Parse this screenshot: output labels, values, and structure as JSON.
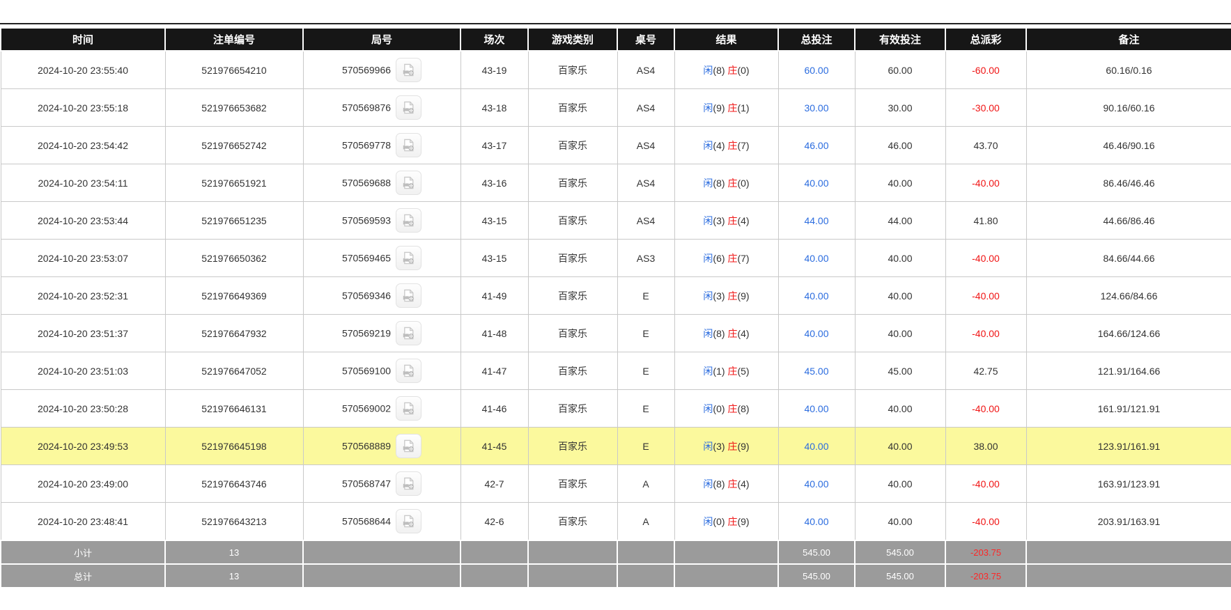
{
  "colors": {
    "header_bg": "#161616",
    "player_blue": "#2b6cdf",
    "banker_red": "#f01414",
    "bet_amount_blue": "#2b6cdf",
    "negative_red": "#f01414",
    "highlight_yellow": "#fbf99d",
    "summary_bg": "#9b9b9b"
  },
  "icons": {
    "round_cell_button": "video-replay-icon"
  },
  "table": {
    "columns": [
      {
        "key": "time",
        "label": "时间"
      },
      {
        "key": "bet_id",
        "label": "注单编号"
      },
      {
        "key": "round_id",
        "label": "局号"
      },
      {
        "key": "session",
        "label": "场次"
      },
      {
        "key": "game_type",
        "label": "游戏类别"
      },
      {
        "key": "table_no",
        "label": "桌号"
      },
      {
        "key": "result",
        "label": "结果"
      },
      {
        "key": "total_bet",
        "label": "总投注"
      },
      {
        "key": "valid_bet",
        "label": "有效投注"
      },
      {
        "key": "payout",
        "label": "总派彩"
      },
      {
        "key": "remark",
        "label": "备注"
      }
    ],
    "rows": [
      {
        "time": "2024-10-20 23:55:40",
        "bet_id": "521976654210",
        "round_id": "570569966",
        "session": "43-19",
        "game_type": "百家乐",
        "table_no": "AS4",
        "result": {
          "p_label": "闲",
          "p_score": "(8)",
          "b_label": "庄",
          "b_score": "(0)"
        },
        "total_bet": "60.00",
        "valid_bet": "60.00",
        "payout": "-60.00",
        "remark": "60.16/0.16",
        "highlighted": false
      },
      {
        "time": "2024-10-20 23:55:18",
        "bet_id": "521976653682",
        "round_id": "570569876",
        "session": "43-18",
        "game_type": "百家乐",
        "table_no": "AS4",
        "result": {
          "p_label": "闲",
          "p_score": "(9)",
          "b_label": "庄",
          "b_score": "(1)"
        },
        "total_bet": "30.00",
        "valid_bet": "30.00",
        "payout": "-30.00",
        "remark": "90.16/60.16",
        "highlighted": false
      },
      {
        "time": "2024-10-20 23:54:42",
        "bet_id": "521976652742",
        "round_id": "570569778",
        "session": "43-17",
        "game_type": "百家乐",
        "table_no": "AS4",
        "result": {
          "p_label": "闲",
          "p_score": "(4)",
          "b_label": "庄",
          "b_score": "(7)"
        },
        "total_bet": "46.00",
        "valid_bet": "46.00",
        "payout": "43.70",
        "remark": "46.46/90.16",
        "highlighted": false
      },
      {
        "time": "2024-10-20 23:54:11",
        "bet_id": "521976651921",
        "round_id": "570569688",
        "session": "43-16",
        "game_type": "百家乐",
        "table_no": "AS4",
        "result": {
          "p_label": "闲",
          "p_score": "(8)",
          "b_label": "庄",
          "b_score": "(0)"
        },
        "total_bet": "40.00",
        "valid_bet": "40.00",
        "payout": "-40.00",
        "remark": "86.46/46.46",
        "highlighted": false
      },
      {
        "time": "2024-10-20 23:53:44",
        "bet_id": "521976651235",
        "round_id": "570569593",
        "session": "43-15",
        "game_type": "百家乐",
        "table_no": "AS4",
        "result": {
          "p_label": "闲",
          "p_score": "(3)",
          "b_label": "庄",
          "b_score": "(4)"
        },
        "total_bet": "44.00",
        "valid_bet": "44.00",
        "payout": "41.80",
        "remark": "44.66/86.46",
        "highlighted": false
      },
      {
        "time": "2024-10-20 23:53:07",
        "bet_id": "521976650362",
        "round_id": "570569465",
        "session": "43-15",
        "game_type": "百家乐",
        "table_no": "AS3",
        "result": {
          "p_label": "闲",
          "p_score": "(6)",
          "b_label": "庄",
          "b_score": "(7)"
        },
        "total_bet": "40.00",
        "valid_bet": "40.00",
        "payout": "-40.00",
        "remark": "84.66/44.66",
        "highlighted": false
      },
      {
        "time": "2024-10-20 23:52:31",
        "bet_id": "521976649369",
        "round_id": "570569346",
        "session": "41-49",
        "game_type": "百家乐",
        "table_no": "E",
        "result": {
          "p_label": "闲",
          "p_score": "(3)",
          "b_label": "庄",
          "b_score": "(9)"
        },
        "total_bet": "40.00",
        "valid_bet": "40.00",
        "payout": "-40.00",
        "remark": "124.66/84.66",
        "highlighted": false
      },
      {
        "time": "2024-10-20 23:51:37",
        "bet_id": "521976647932",
        "round_id": "570569219",
        "session": "41-48",
        "game_type": "百家乐",
        "table_no": "E",
        "result": {
          "p_label": "闲",
          "p_score": "(8)",
          "b_label": "庄",
          "b_score": "(4)"
        },
        "total_bet": "40.00",
        "valid_bet": "40.00",
        "payout": "-40.00",
        "remark": "164.66/124.66",
        "highlighted": false
      },
      {
        "time": "2024-10-20 23:51:03",
        "bet_id": "521976647052",
        "round_id": "570569100",
        "session": "41-47",
        "game_type": "百家乐",
        "table_no": "E",
        "result": {
          "p_label": "闲",
          "p_score": "(1)",
          "b_label": "庄",
          "b_score": "(5)"
        },
        "total_bet": "45.00",
        "valid_bet": "45.00",
        "payout": "42.75",
        "remark": "121.91/164.66",
        "highlighted": false
      },
      {
        "time": "2024-10-20 23:50:28",
        "bet_id": "521976646131",
        "round_id": "570569002",
        "session": "41-46",
        "game_type": "百家乐",
        "table_no": "E",
        "result": {
          "p_label": "闲",
          "p_score": "(0)",
          "b_label": "庄",
          "b_score": "(8)"
        },
        "total_bet": "40.00",
        "valid_bet": "40.00",
        "payout": "-40.00",
        "remark": "161.91/121.91",
        "highlighted": false
      },
      {
        "time": "2024-10-20 23:49:53",
        "bet_id": "521976645198",
        "round_id": "570568889",
        "session": "41-45",
        "game_type": "百家乐",
        "table_no": "E",
        "result": {
          "p_label": "闲",
          "p_score": "(3)",
          "b_label": "庄",
          "b_score": "(9)"
        },
        "total_bet": "40.00",
        "valid_bet": "40.00",
        "payout": "38.00",
        "remark": "123.91/161.91",
        "highlighted": true
      },
      {
        "time": "2024-10-20 23:49:00",
        "bet_id": "521976643746",
        "round_id": "570568747",
        "session": "42-7",
        "game_type": "百家乐",
        "table_no": "A",
        "result": {
          "p_label": "闲",
          "p_score": "(8)",
          "b_label": "庄",
          "b_score": "(4)"
        },
        "total_bet": "40.00",
        "valid_bet": "40.00",
        "payout": "-40.00",
        "remark": "163.91/123.91",
        "highlighted": false
      },
      {
        "time": "2024-10-20 23:48:41",
        "bet_id": "521976643213",
        "round_id": "570568644",
        "session": "42-6",
        "game_type": "百家乐",
        "table_no": "A",
        "result": {
          "p_label": "闲",
          "p_score": "(0)",
          "b_label": "庄",
          "b_score": "(9)"
        },
        "total_bet": "40.00",
        "valid_bet": "40.00",
        "payout": "-40.00",
        "remark": "203.91/163.91",
        "highlighted": false
      }
    ],
    "summary_rows": [
      {
        "label": "小计",
        "count": "13",
        "total_bet": "545.00",
        "valid_bet": "545.00",
        "payout": "-203.75"
      },
      {
        "label": "总计",
        "count": "13",
        "total_bet": "545.00",
        "valid_bet": "545.00",
        "payout": "-203.75"
      }
    ]
  }
}
